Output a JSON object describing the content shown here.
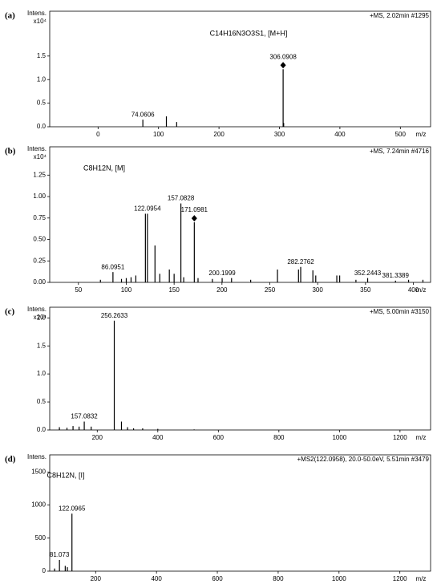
{
  "chart_data": [
    {
      "type": "mass-spectrum",
      "label": "(a)",
      "ylabel": "Intens.",
      "yunit": "x10⁴",
      "header": "+MS, 2.02min #1295",
      "formula": "C14H16N3O3S1, [M+H]",
      "xlabel": "m/z",
      "xlim": [
        -80,
        550
      ],
      "xticks": [
        0,
        100,
        200,
        300,
        400,
        500
      ],
      "ylim": [
        0,
        2.45
      ],
      "yticks": [
        {
          "value": 0,
          "label": "0.0"
        },
        {
          "value": 0.5,
          "label": "0.5"
        },
        {
          "value": 1,
          "label": "1.0"
        },
        {
          "value": 1.5,
          "label": "1.5"
        }
      ],
      "peaks": {
        "x": [
          74.0606
        ],
        "values": [
          0.15
        ]
      },
      "other_peaks": {
        "x": [
          113,
          130,
          307
        ],
        "values": [
          0.22,
          0.1,
          0.08
        ]
      },
      "precursor": {
        "x": 306.0908,
        "value": 1.22
      }
    },
    {
      "type": "mass-spectrum",
      "label": "(b)",
      "ylabel": "Intens.",
      "yunit": "x10⁴",
      "header": "+MS, 7.24min #4716",
      "formula": "C8H12N, [M]",
      "xlabel": "m/z",
      "xlim": [
        20,
        418
      ],
      "xticks": [
        50,
        100,
        150,
        200,
        250,
        300,
        350,
        400
      ],
      "ylim": [
        0,
        1.58
      ],
      "yticks": [
        {
          "value": 0,
          "label": "0.00"
        },
        {
          "value": 0.25,
          "label": "0.25"
        },
        {
          "value": 0.5,
          "label": "0.50"
        },
        {
          "value": 0.75,
          "label": "0.75"
        },
        {
          "value": 1,
          "label": "1.00"
        },
        {
          "value": 1.25,
          "label": "1.25"
        }
      ],
      "peaks": {
        "x": [
          86.0951,
          122.0954,
          157.0828,
          200.1999,
          282.2762,
          352.2443,
          381.3389
        ],
        "values": [
          0.12,
          0.8,
          0.92,
          0.05,
          0.18,
          0.05,
          0.02
        ]
      },
      "other_peaks": {
        "x": [
          73,
          95,
          100,
          105,
          110,
          120,
          130,
          135,
          145,
          150,
          160,
          175,
          190,
          210,
          230,
          258,
          280,
          295,
          298,
          320,
          323,
          340,
          395,
          410
        ],
        "values": [
          0.03,
          0.04,
          0.05,
          0.06,
          0.08,
          0.8,
          0.43,
          0.1,
          0.15,
          0.1,
          0.06,
          0.05,
          0.04,
          0.05,
          0.03,
          0.15,
          0.15,
          0.14,
          0.08,
          0.08,
          0.08,
          0.03,
          0.03,
          0.03
        ]
      },
      "precursor": {
        "x": 171.0981,
        "value": 0.7
      }
    },
    {
      "type": "mass-spectrum",
      "label": "(c)",
      "ylabel": "Intens.",
      "yunit": "x10⁴",
      "header": "+MS, 5.00min #3150",
      "xlabel": "m/z",
      "xlim": [
        43,
        1301
      ],
      "xticks": [
        200,
        400,
        600,
        800,
        1000,
        1200
      ],
      "ylim": [
        0,
        2.19
      ],
      "yticks": [
        {
          "value": 0,
          "label": "0.0"
        },
        {
          "value": 0.5,
          "label": "0.5"
        },
        {
          "value": 1,
          "label": "1.0"
        },
        {
          "value": 1.5,
          "label": "1.5"
        },
        {
          "value": 2,
          "label": "2.0"
        }
      ],
      "peaks": {
        "x": [
          157.0832,
          256.2633
        ],
        "values": [
          0.15,
          1.95
        ]
      },
      "other_peaks": {
        "x": [
          75,
          100,
          120,
          140,
          180,
          280,
          300,
          320,
          350,
          400,
          520
        ],
        "values": [
          0.05,
          0.04,
          0.07,
          0.06,
          0.06,
          0.15,
          0.05,
          0.03,
          0.03,
          0.02,
          0.01
        ]
      }
    },
    {
      "type": "mass-spectrum",
      "label": "(d)",
      "ylabel": "Intens.",
      "header": "+MS2(122.0958), 20.0-50.0eV, 5.51min #3479",
      "formula": "C8H12N, [I]",
      "xlabel": "m/z",
      "xlim": [
        49,
        1301
      ],
      "xticks": [
        200,
        400,
        600,
        800,
        1000,
        1200
      ],
      "ylim": [
        0,
        1760
      ],
      "yticks": [
        0,
        500,
        1000,
        1500
      ],
      "peaks": {
        "x": [
          81.073,
          122.0965
        ],
        "values": [
          170,
          870
        ]
      },
      "other_peaks": {
        "x": [
          65,
          100,
          107
        ],
        "values": [
          40,
          80,
          60
        ]
      }
    }
  ]
}
